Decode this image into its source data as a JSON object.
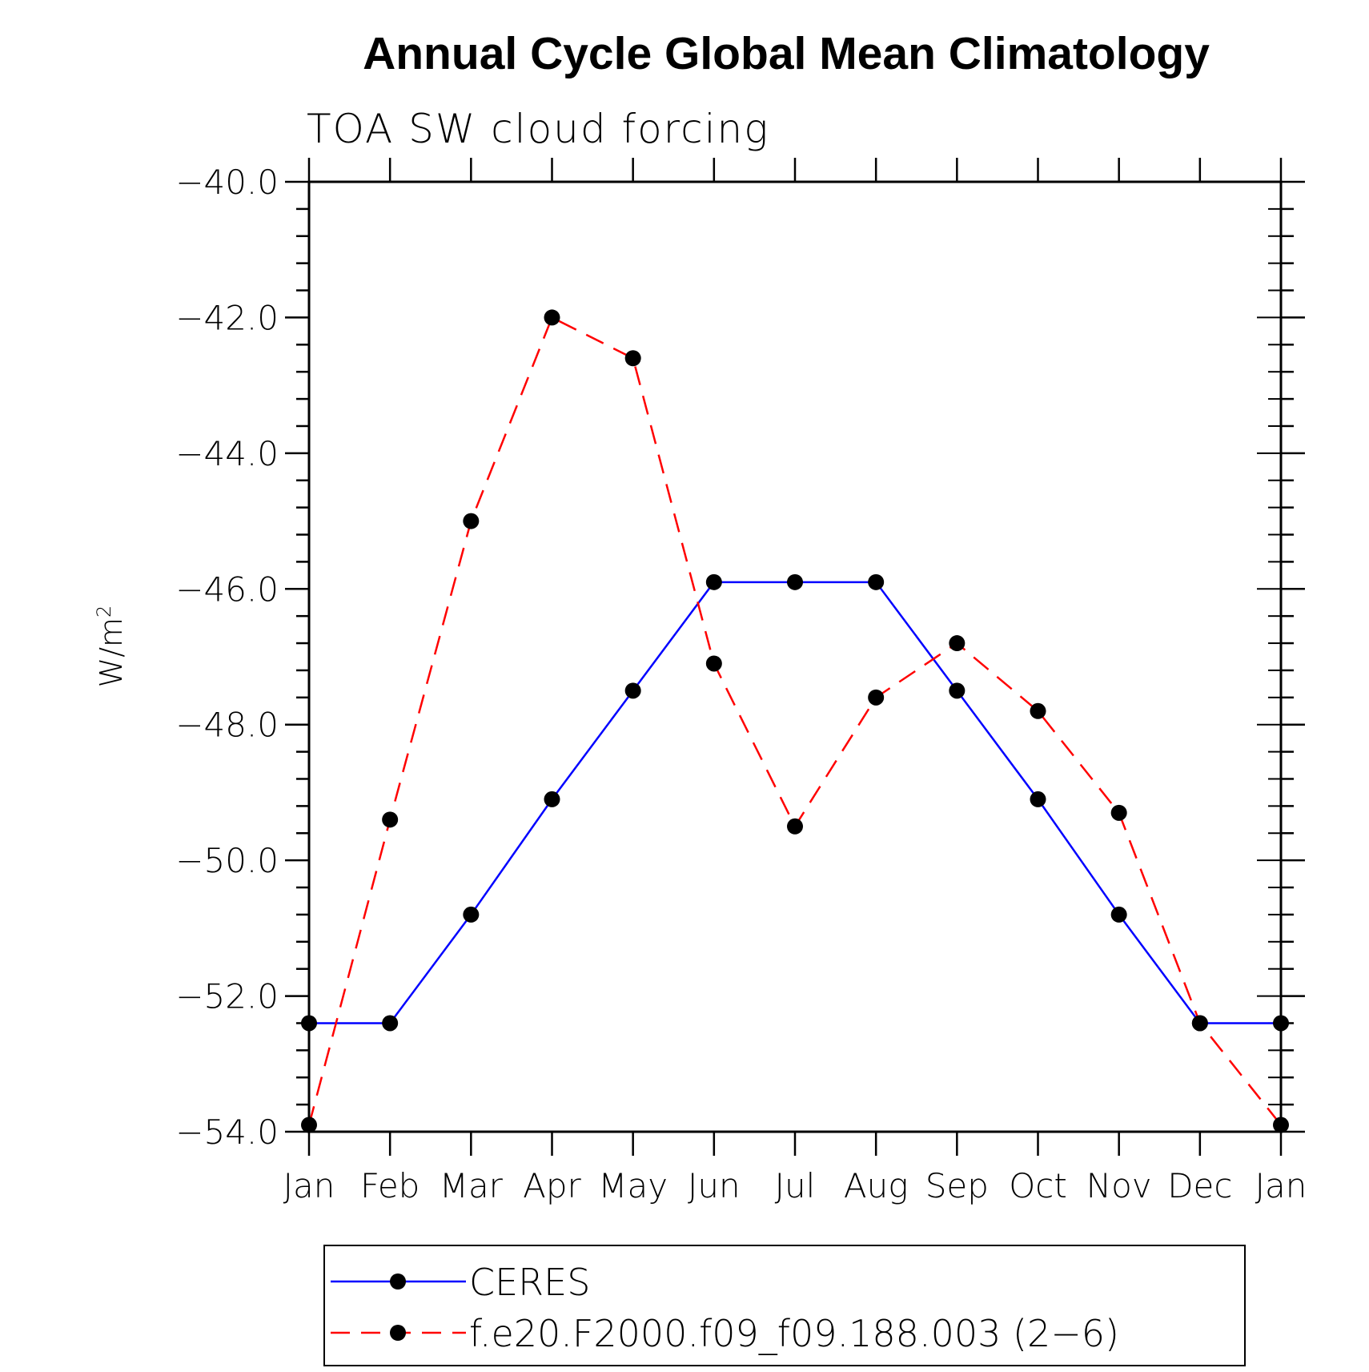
{
  "chart_data": {
    "type": "line",
    "title": "Annual Cycle Global Mean Climatology",
    "subtitle": "TOA SW cloud forcing",
    "ylabel": "W/m",
    "ylabel_superscript": "2",
    "xlabel": "",
    "categories": [
      "Jan",
      "Feb",
      "Mar",
      "Apr",
      "May",
      "Jun",
      "Jul",
      "Aug",
      "Sep",
      "Oct",
      "Nov",
      "Dec",
      "Jan"
    ],
    "ylim": [
      -54.0,
      -40.0
    ],
    "yticks": [
      -40.0,
      -42.0,
      -44.0,
      -46.0,
      -48.0,
      -50.0,
      -52.0,
      -54.0
    ],
    "ytick_labels": [
      "−40.0",
      "−42.0",
      "−44.0",
      "−46.0",
      "−48.0",
      "−50.0",
      "−52.0",
      "−54.0"
    ],
    "grid": false,
    "legend_position": "bottom",
    "series": [
      {
        "name": "CERES",
        "color": "#0000ff",
        "style": "solid",
        "marker": "filled-circle",
        "values": [
          -52.4,
          -52.4,
          -50.8,
          -49.1,
          -47.5,
          -45.9,
          -45.9,
          -45.9,
          -47.5,
          -49.1,
          -50.8,
          -52.4,
          -52.4
        ]
      },
      {
        "name": "f.e20.F2000.f09_f09.188.003 (2−6)",
        "color": "#ff0000",
        "style": "dashed",
        "marker": "filled-circle",
        "values": [
          -53.9,
          -49.4,
          -45.0,
          -42.0,
          -42.6,
          -47.1,
          -49.5,
          -47.6,
          -46.8,
          -47.8,
          -49.3,
          -52.4,
          -53.9
        ]
      }
    ]
  }
}
